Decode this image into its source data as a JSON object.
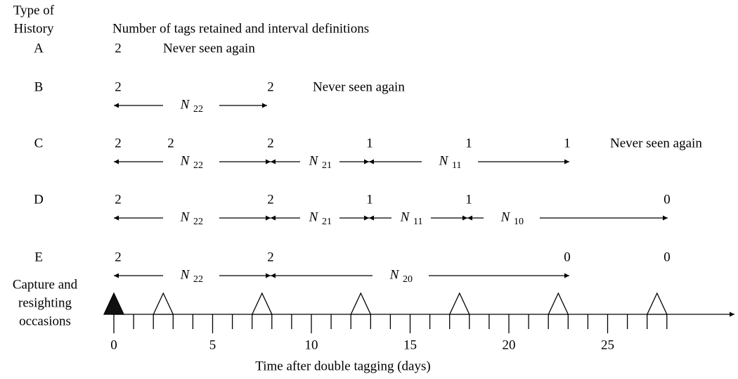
{
  "header": {
    "history_label": [
      "Type of",
      "History"
    ],
    "title": "Number of tags retained and interval definitions"
  },
  "rows": [
    {
      "label": "A",
      "tags": [
        "2"
      ],
      "note": "Never seen again",
      "intervals": []
    },
    {
      "label": "B",
      "tags": [
        "2",
        "2"
      ],
      "note": "Never seen again",
      "intervals": [
        {
          "symbol": "N",
          "sub": "22"
        }
      ]
    },
    {
      "label": "C",
      "tags": [
        "2",
        "2",
        "2",
        "1",
        "1",
        "1"
      ],
      "note": "Never seen again",
      "intervals": [
        {
          "symbol": "N",
          "sub": "22"
        },
        {
          "symbol": "N",
          "sub": "21"
        },
        {
          "symbol": "N",
          "sub": "11"
        }
      ]
    },
    {
      "label": "D",
      "tags": [
        "2",
        "2",
        "1",
        "1",
        "0"
      ],
      "intervals": [
        {
          "symbol": "N",
          "sub": "22"
        },
        {
          "symbol": "N",
          "sub": "21"
        },
        {
          "symbol": "N",
          "sub": "11"
        },
        {
          "symbol": "N",
          "sub": "10"
        }
      ]
    },
    {
      "label": "E",
      "tags": [
        "2",
        "2",
        "0",
        "0"
      ],
      "intervals": [
        {
          "symbol": "N",
          "sub": "22"
        },
        {
          "symbol": "N",
          "sub": "20"
        }
      ]
    }
  ],
  "occasions_label": [
    "Capture and",
    "resighting",
    "occasions"
  ],
  "axis": {
    "tick_labels": [
      "0",
      "5",
      "10",
      "15",
      "20",
      "25"
    ],
    "label": "Time after double tagging (days)"
  }
}
